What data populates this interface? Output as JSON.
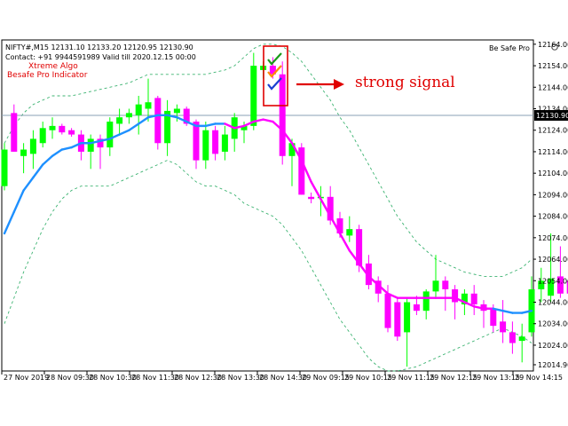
{
  "header": {
    "symbol_line": "NIFTY#,M15  12131.10 12133.20 12120.95 12130.90",
    "contact_line": "Contact: +91 9944591989 Valid till 2020.12.15 00:00"
  },
  "indicator": {
    "name_line1": "Xtreme Algo",
    "name_line2": "Besafe Pro Indicator",
    "brand": "Be Safe Pro",
    "signal_label": "strong signal"
  },
  "colors": {
    "bull": "#00ff00",
    "bear": "#ff00ff",
    "ma_up": "#1e90ff",
    "ma_down": "#ff00ff",
    "band": "#3cb371",
    "annotation": "#e00000",
    "price_line": "#8aa0b4"
  },
  "icons": [
    "checkmark-icon",
    "arrow-right-icon",
    "gear-icon"
  ],
  "chart_data": {
    "type": "candlestick",
    "current_price_label": "12130.90",
    "current_price": 12130.9,
    "ylim": [
      12012,
      12166
    ],
    "y_ticks": [
      "12164.00",
      "12154.00",
      "12144.00",
      "12134.00",
      "12124.00",
      "12114.00",
      "12104.00",
      "12094.00",
      "12084.00",
      "12074.00",
      "12064.00",
      "12054.00",
      "12044.00",
      "12034.00",
      "12024.00",
      "12014.90"
    ],
    "y_tick_values": [
      12164,
      12154,
      12144,
      12134,
      12124,
      12114,
      12104,
      12094,
      12084,
      12074,
      12064,
      12054,
      12044,
      12034,
      12024,
      12014.9
    ],
    "x_ticks": [
      "27 Nov 2019",
      "28 Nov 09:30",
      "28 Nov 10:30",
      "28 Nov 11:30",
      "28 Nov 12:30",
      "28 Nov 13:30",
      "28 Nov 14:30",
      "29 Nov 09:15",
      "29 Nov 10:15",
      "29 Nov 11:15",
      "29 Nov 12:15",
      "29 Nov 13:15",
      "29 Nov 14:15"
    ],
    "x_tick_index": [
      0,
      4,
      8,
      12,
      16,
      20,
      24,
      28,
      32,
      36,
      40,
      44,
      48
    ],
    "candles": [
      {
        "o": 12098,
        "h": 12118,
        "l": 12096,
        "c": 12115
      },
      {
        "o": 12132,
        "h": 12136,
        "l": 12114,
        "c": 12114
      },
      {
        "o": 12112,
        "h": 12118,
        "l": 12104,
        "c": 12115
      },
      {
        "o": 12113,
        "h": 12124,
        "l": 12106,
        "c": 12120
      },
      {
        "o": 12118,
        "h": 12128,
        "l": 12116,
        "c": 12125
      },
      {
        "o": 12124,
        "h": 12130,
        "l": 12120,
        "c": 12126
      },
      {
        "o": 12126,
        "h": 12127,
        "l": 12122,
        "c": 12123
      },
      {
        "o": 12124,
        "h": 12125,
        "l": 12121,
        "c": 12122
      },
      {
        "o": 12122,
        "h": 12124,
        "l": 12110,
        "c": 12114
      },
      {
        "o": 12114,
        "h": 12122,
        "l": 12106,
        "c": 12120
      },
      {
        "o": 12120,
        "h": 12122,
        "l": 12106,
        "c": 12116
      },
      {
        "o": 12116,
        "h": 12130,
        "l": 12112,
        "c": 12128
      },
      {
        "o": 12127,
        "h": 12134,
        "l": 12122,
        "c": 12130
      },
      {
        "o": 12130,
        "h": 12134,
        "l": 12127,
        "c": 12132
      },
      {
        "o": 12131,
        "h": 12140,
        "l": 12122,
        "c": 12136
      },
      {
        "o": 12134,
        "h": 12148,
        "l": 12128,
        "c": 12137
      },
      {
        "o": 12139,
        "h": 12140,
        "l": 12115,
        "c": 12118
      },
      {
        "o": 12118,
        "h": 12138,
        "l": 12112,
        "c": 12133
      },
      {
        "o": 12132,
        "h": 12136,
        "l": 12128,
        "c": 12134
      },
      {
        "o": 12134,
        "h": 12135,
        "l": 12126,
        "c": 12127
      },
      {
        "o": 12128,
        "h": 12129,
        "l": 12106,
        "c": 12110
      },
      {
        "o": 12110,
        "h": 12128,
        "l": 12106,
        "c": 12124
      },
      {
        "o": 12124,
        "h": 12126,
        "l": 12110,
        "c": 12113
      },
      {
        "o": 12114,
        "h": 12126,
        "l": 12110,
        "c": 12122
      },
      {
        "o": 12120,
        "h": 12132,
        "l": 12114,
        "c": 12130
      },
      {
        "o": 12124,
        "h": 12128,
        "l": 12118,
        "c": 12126
      },
      {
        "o": 12126,
        "h": 12160,
        "l": 12124,
        "c": 12154
      },
      {
        "o": 12152,
        "h": 12156,
        "l": 12148,
        "c": 12154
      },
      {
        "o": 12154,
        "h": 12158,
        "l": 12148,
        "c": 12150
      },
      {
        "o": 12150,
        "h": 12156,
        "l": 12108,
        "c": 12112
      },
      {
        "o": 12112,
        "h": 12120,
        "l": 12098,
        "c": 12118
      },
      {
        "o": 12116,
        "h": 12118,
        "l": 12094,
        "c": 12094
      },
      {
        "o": 12093,
        "h": 12095,
        "l": 12090,
        "c": 12092
      },
      {
        "o": 12093,
        "h": 12098,
        "l": 12084,
        "c": 12093
      },
      {
        "o": 12093,
        "h": 12098,
        "l": 12080,
        "c": 12082
      },
      {
        "o": 12083,
        "h": 12086,
        "l": 12074,
        "c": 12076
      },
      {
        "o": 12075,
        "h": 12084,
        "l": 12072,
        "c": 12078
      },
      {
        "o": 12078,
        "h": 12080,
        "l": 12058,
        "c": 12061
      },
      {
        "o": 12062,
        "h": 12066,
        "l": 12050,
        "c": 12052
      },
      {
        "o": 12054,
        "h": 12056,
        "l": 12044,
        "c": 12048
      },
      {
        "o": 12048,
        "h": 12052,
        "l": 12030,
        "c": 12032
      },
      {
        "o": 12044,
        "h": 12046,
        "l": 12026,
        "c": 12028
      },
      {
        "o": 12030,
        "h": 12046,
        "l": 12014,
        "c": 12044
      },
      {
        "o": 12043,
        "h": 12047,
        "l": 12038,
        "c": 12040
      },
      {
        "o": 12040,
        "h": 12050,
        "l": 12036,
        "c": 12049
      },
      {
        "o": 12049,
        "h": 12066,
        "l": 12046,
        "c": 12054
      },
      {
        "o": 12054,
        "h": 12056,
        "l": 12040,
        "c": 12050
      },
      {
        "o": 12050,
        "h": 12052,
        "l": 12036,
        "c": 12044
      },
      {
        "o": 12043,
        "h": 12050,
        "l": 12038,
        "c": 12048
      },
      {
        "o": 12048,
        "h": 12052,
        "l": 12038,
        "c": 12043
      },
      {
        "o": 12043,
        "h": 12045,
        "l": 12032,
        "c": 12040
      },
      {
        "o": 12041,
        "h": 12043,
        "l": 12030,
        "c": 12033
      },
      {
        "o": 12035,
        "h": 12045,
        "l": 12025,
        "c": 12030
      },
      {
        "o": 12030,
        "h": 12035,
        "l": 12020,
        "c": 12025
      },
      {
        "o": 12026,
        "h": 12034,
        "l": 12016,
        "c": 12028
      },
      {
        "o": 12030,
        "h": 12056,
        "l": 12028,
        "c": 12050
      },
      {
        "o": 12050,
        "h": 12060,
        "l": 12044,
        "c": 12054
      },
      {
        "o": 12047,
        "h": 12076,
        "l": 12044,
        "c": 12055
      },
      {
        "o": 12056,
        "h": 12070,
        "l": 12046,
        "c": 12048
      },
      {
        "o": 12054,
        "h": 12062,
        "l": 12046,
        "c": 12048
      }
    ],
    "ma": [
      12076,
      12086,
      12096,
      12102,
      12108,
      12112,
      12115,
      12116,
      12118,
      12118,
      12119,
      12120,
      12122,
      12124,
      12127,
      12130,
      12131,
      12131,
      12130,
      12128,
      12126,
      12126,
      12127,
      12127,
      12125,
      12126,
      12128,
      12129,
      12128,
      12124,
      12118,
      12110,
      12100,
      12092,
      12084,
      12076,
      12068,
      12062,
      12056,
      12052,
      12048,
      12046,
      12046,
      12046,
      12046,
      12046,
      12046,
      12046,
      12044,
      12042,
      12041,
      12041,
      12040,
      12039,
      12039,
      12040
    ],
    "band_upper": [
      12118,
      12126,
      12132,
      12136,
      12138,
      12140,
      12140,
      12140,
      12141,
      12142,
      12143,
      12144,
      12145,
      12146,
      12148,
      12150,
      12150,
      12150,
      12150,
      12150,
      12150,
      12150,
      12151,
      12152,
      12154,
      12158,
      12162,
      12164,
      12164,
      12163,
      12160,
      12156,
      12150,
      12144,
      12138,
      12130,
      12124,
      12116,
      12108,
      12100,
      12092,
      12084,
      12078,
      12072,
      12068,
      12064,
      12062,
      12060,
      12058,
      12057,
      12056,
      12056,
      12056,
      12058,
      12060,
      12064
    ],
    "band_lower": [
      12034,
      12046,
      12058,
      12068,
      12078,
      12086,
      12092,
      12096,
      12098,
      12098,
      12098,
      12098,
      12100,
      12102,
      12104,
      12106,
      12108,
      12110,
      12108,
      12104,
      12100,
      12098,
      12098,
      12096,
      12094,
      12090,
      12088,
      12086,
      12084,
      12080,
      12074,
      12068,
      12060,
      12052,
      12044,
      12036,
      12030,
      12024,
      12018,
      12014,
      12012,
      12012,
      12013,
      12014,
      12016,
      12018,
      12020,
      12022,
      12024,
      12026,
      12028,
      12030,
      12032,
      12030,
      12028,
      12025
    ]
  }
}
